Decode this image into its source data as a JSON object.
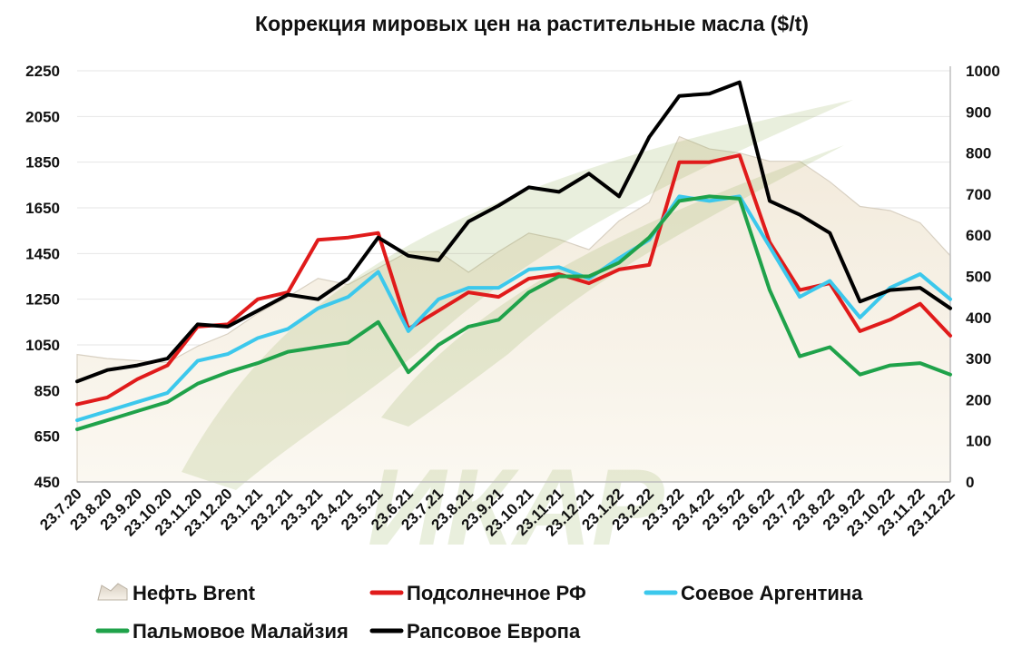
{
  "chart_data": {
    "type": "line",
    "title": "Коррекция мировых цен на растительные масла ($/t)",
    "xlabel": "",
    "ylabel": "",
    "ylim": [
      450,
      2250
    ],
    "y2lim": [
      0,
      1000
    ],
    "yticks": [
      "2250",
      "2050",
      "1850",
      "1650",
      "1450",
      "1250",
      "1050",
      "850",
      "650",
      "450"
    ],
    "y2ticks": [
      "1000",
      "900",
      "800",
      "700",
      "600",
      "500",
      "400",
      "300",
      "200",
      "100",
      "0"
    ],
    "categories": [
      "23.7.20",
      "23.8.20",
      "23.9.20",
      "23.10.20",
      "23.11.20",
      "23.12.20",
      "23.1.21",
      "23.2.21",
      "23.3.21",
      "23.4.21",
      "23.5.21",
      "23.6.21",
      "23.7.21",
      "23.8.21",
      "23.9.21",
      "23.10.21",
      "23.11.21",
      "23.12.21",
      "23.1.22",
      "23.2.22",
      "23.3.22",
      "23.4.22",
      "23.5.22",
      "23.6.22",
      "23.7.22",
      "23.8.22",
      "23.9.22",
      "23.10.22",
      "23.11.22",
      "23.12.22"
    ],
    "legend_position": "bottom",
    "series": [
      {
        "name": "Нефть Brent",
        "axis": "right",
        "style": "area",
        "color": "#f7f0e2",
        "values": [
          310,
          300,
          295,
          290,
          330,
          360,
          410,
          450,
          495,
          480,
          520,
          560,
          560,
          510,
          560,
          605,
          590,
          565,
          635,
          680,
          840,
          810,
          800,
          780,
          780,
          730,
          670,
          660,
          630,
          550
        ]
      },
      {
        "name": "Подсолнечное РФ",
        "axis": "left",
        "color": "#e01b1b",
        "values": [
          790,
          820,
          900,
          960,
          1130,
          1140,
          1250,
          1280,
          1510,
          1520,
          1540,
          1120,
          1200,
          1280,
          1260,
          1340,
          1360,
          1320,
          1380,
          1400,
          1850,
          1850,
          1880,
          1500,
          1290,
          1320,
          1110,
          1160,
          1230,
          1090
        ]
      },
      {
        "name": "Соевое Аргентина",
        "axis": "left",
        "color": "#3cc8ec",
        "values": [
          720,
          760,
          800,
          840,
          980,
          1010,
          1080,
          1120,
          1210,
          1260,
          1370,
          1110,
          1250,
          1300,
          1300,
          1380,
          1390,
          1340,
          1430,
          1510,
          1700,
          1680,
          1700,
          1480,
          1260,
          1330,
          1170,
          1300,
          1360,
          1250
        ]
      },
      {
        "name": "Пальмовое Малайзия",
        "axis": "left",
        "color": "#1fa24a",
        "values": [
          680,
          720,
          760,
          800,
          880,
          930,
          970,
          1020,
          1040,
          1060,
          1150,
          930,
          1050,
          1130,
          1160,
          1280,
          1350,
          1350,
          1410,
          1520,
          1680,
          1700,
          1690,
          1290,
          1000,
          1040,
          920,
          960,
          970,
          920
        ]
      },
      {
        "name": "Рапсовое Европа",
        "axis": "left",
        "color": "#000000",
        "values": [
          890,
          940,
          960,
          990,
          1140,
          1130,
          1200,
          1270,
          1250,
          1340,
          1520,
          1440,
          1420,
          1590,
          1660,
          1740,
          1720,
          1800,
          1700,
          1960,
          2140,
          2150,
          2200,
          1680,
          1620,
          1540,
          1240,
          1290,
          1300,
          1210
        ]
      }
    ]
  }
}
